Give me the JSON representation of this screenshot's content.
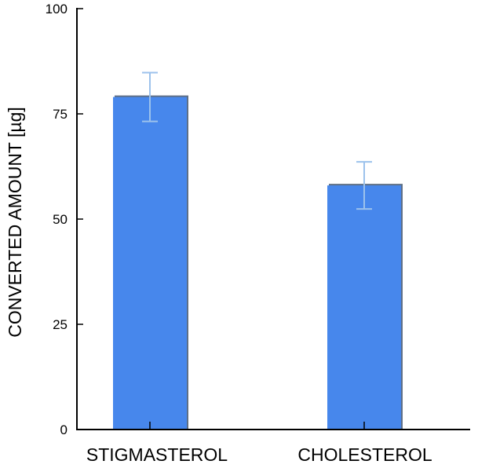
{
  "chart_data": {
    "type": "bar",
    "title": "",
    "xlabel": "",
    "ylabel": "CONVERTED AMOUNT [µg]",
    "categories": [
      "STIGMASTEROL",
      "CHOLESTEROL"
    ],
    "values": [
      79,
      58
    ],
    "errors": [
      5.8,
      5.6
    ],
    "ylim": [
      0,
      100
    ],
    "yticks": [
      0,
      25,
      50,
      75,
      100
    ],
    "ytick_labels": [
      "0",
      "25",
      "50",
      "75",
      "100"
    ],
    "grid": false,
    "legend": "none",
    "colors": {
      "bar": "#4787ec",
      "bar_shadow": "#5e6f86",
      "error_bar": "#9cc2ec",
      "axis": "#000000"
    }
  }
}
